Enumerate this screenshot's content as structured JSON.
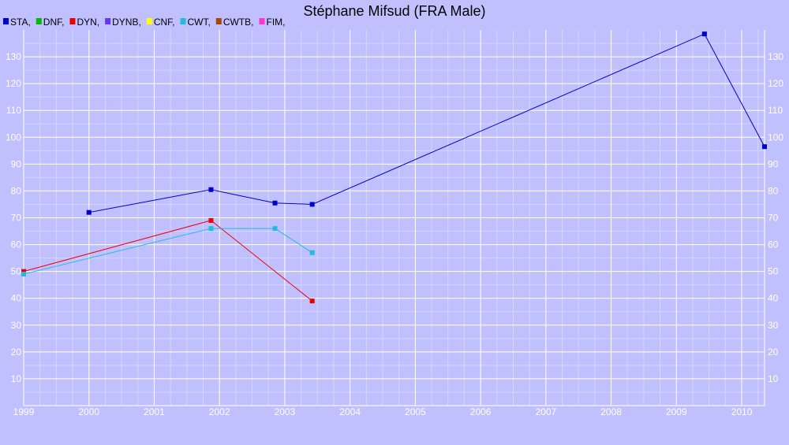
{
  "chart_data": {
    "type": "line",
    "title": "Stéphane Mifsud (FRA Male)",
    "xlabel": "",
    "ylabel": "",
    "xlim": [
      1999.0,
      2010.35
    ],
    "ylim": [
      0,
      140
    ],
    "x_ticks": [
      1999,
      2000,
      2001,
      2002,
      2003,
      2004,
      2005,
      2006,
      2007,
      2008,
      2009,
      2010
    ],
    "y_ticks": [
      10,
      20,
      30,
      40,
      50,
      60,
      70,
      80,
      90,
      100,
      110,
      120,
      130
    ],
    "grid": true,
    "legend_position": "top-left",
    "legend": [
      {
        "label": "STA,",
        "color": "#0000cc"
      },
      {
        "label": "DNF,",
        "color": "#00bb00"
      },
      {
        "label": "DYN,",
        "color": "#ee0000"
      },
      {
        "label": "DYNB,",
        "color": "#6633ff"
      },
      {
        "label": "CNF,",
        "color": "#ffff00"
      },
      {
        "label": "CWT,",
        "color": "#22bbdd"
      },
      {
        "label": "CWTB,",
        "color": "#aa4400"
      },
      {
        "label": "FIM,",
        "color": "#ff33cc"
      }
    ],
    "series": [
      {
        "name": "STA",
        "color": "#0000cc",
        "points": [
          [
            2000.0,
            72
          ],
          [
            2001.87,
            80.5
          ],
          [
            2002.85,
            75.5
          ],
          [
            2003.42,
            75
          ],
          [
            2009.43,
            138.5
          ],
          [
            2010.35,
            96.5
          ]
        ]
      },
      {
        "name": "DYN",
        "color": "#ee0000",
        "points": [
          [
            1999.0,
            50
          ],
          [
            2001.87,
            69
          ],
          [
            2003.42,
            39
          ]
        ]
      },
      {
        "name": "CWT",
        "color": "#22bbdd",
        "points": [
          [
            1999.0,
            49
          ],
          [
            2001.87,
            66
          ],
          [
            2002.85,
            66
          ],
          [
            2003.42,
            57
          ]
        ]
      }
    ]
  }
}
